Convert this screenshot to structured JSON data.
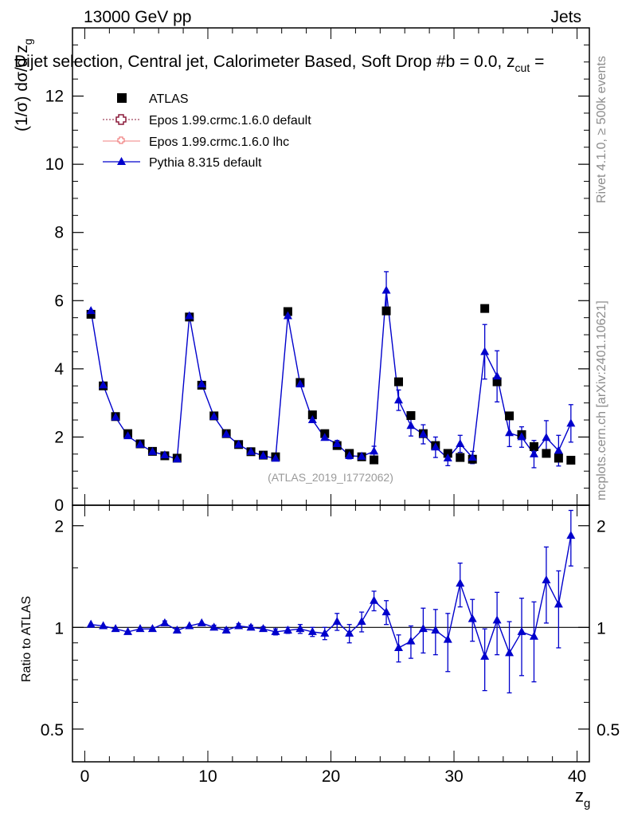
{
  "header": {
    "left": "13000 GeV pp",
    "right": "Jets"
  },
  "side_labels": {
    "rivet": "Rivet 4.1.0, ≥ 500k events",
    "mcplots": "mcplots.cern.ch [arXiv:2401.10621]"
  },
  "chart_data": [
    {
      "panel": "main",
      "type": "scatter",
      "title": "Dijet selection, Central jet, Calorimeter Based, Soft Drop #b = 0.0, z",
      "title_sub": "cut",
      "title_tail": " =",
      "ylabel": "(1/σ) dσ/d z",
      "ylabel_sub": "g",
      "xlabel": "",
      "xlim": [
        -1,
        41
      ],
      "ylim": [
        0,
        14
      ],
      "yticks": [
        0,
        2,
        4,
        6,
        8,
        10,
        12
      ],
      "ytick_labels": [
        "0",
        "2",
        "4",
        "6",
        "8",
        "10",
        "12"
      ],
      "watermark": "(ATLAS_2019_I1772062)",
      "legend": {
        "placement": "top-left",
        "entries": [
          {
            "label": "ATLAS",
            "color": "#000000",
            "marker": "square"
          },
          {
            "label": "Epos 1.99.crmc.1.6.0 default",
            "color": "#8b1a3a",
            "marker": "open-cross",
            "dash": "dotted"
          },
          {
            "label": "Epos 1.99.crmc.1.6.0 lhc",
            "color": "#f08080",
            "marker": "open-cross-small"
          },
          {
            "label": "Pythia 8.315 default",
            "color": "#0000cc",
            "marker": "triangle"
          }
        ]
      },
      "x": [
        0.5,
        1.5,
        2.5,
        3.5,
        4.5,
        5.5,
        6.5,
        7.5,
        8.5,
        9.5,
        10.5,
        11.5,
        12.5,
        13.5,
        14.5,
        15.5,
        16.5,
        17.5,
        18.5,
        19.5,
        20.5,
        21.5,
        22.5,
        23.5,
        24.5,
        25.5,
        26.5,
        27.5,
        28.5,
        29.5,
        30.5,
        31.5,
        32.5,
        33.5,
        34.5,
        35.5,
        36.5,
        37.5,
        38.5,
        39.5
      ],
      "series": [
        {
          "name": "ATLAS",
          "values": [
            5.6,
            3.5,
            2.6,
            2.1,
            1.8,
            1.58,
            1.45,
            1.38,
            5.52,
            3.52,
            2.62,
            2.1,
            1.78,
            1.57,
            1.47,
            1.42,
            5.68,
            3.6,
            2.65,
            2.1,
            1.75,
            1.52,
            1.42,
            1.33,
            5.7,
            3.62,
            2.63,
            2.1,
            1.75,
            1.52,
            1.4,
            1.35,
            5.77,
            3.62,
            2.62,
            2.07,
            1.72,
            1.52,
            1.38,
            1.32
          ]
        },
        {
          "name": "Pythia 8.315 default",
          "values": [
            5.7,
            3.52,
            2.58,
            2.03,
            1.78,
            1.57,
            1.47,
            1.35,
            5.55,
            3.55,
            2.6,
            2.08,
            1.78,
            1.57,
            1.45,
            1.37,
            5.55,
            3.55,
            2.5,
            1.98,
            1.8,
            1.45,
            1.43,
            1.58,
            6.3,
            3.08,
            2.33,
            2.08,
            1.7,
            1.38,
            1.8,
            1.4,
            4.5,
            3.78,
            2.12,
            2.0,
            1.5,
            1.98,
            1.6,
            2.4
          ],
          "errors": [
            0.04,
            0.03,
            0.03,
            0.03,
            0.03,
            0.03,
            0.03,
            0.03,
            0.04,
            0.03,
            0.03,
            0.03,
            0.03,
            0.03,
            0.03,
            0.03,
            0.04,
            0.05,
            0.06,
            0.07,
            0.1,
            0.09,
            0.1,
            0.15,
            0.55,
            0.3,
            0.3,
            0.28,
            0.3,
            0.22,
            0.25,
            0.18,
            0.8,
            0.75,
            0.4,
            0.3,
            0.4,
            0.5,
            0.45,
            0.55
          ]
        }
      ]
    },
    {
      "panel": "ratio",
      "type": "line",
      "ylabel": "Ratio to ATLAS",
      "xlabel": "z",
      "xlabel_sub": "g",
      "xlim": [
        -1,
        41
      ],
      "ylim": [
        0.4,
        2.3
      ],
      "yscale": "log",
      "yticks": [
        0.5,
        1,
        2
      ],
      "ytick_labels": [
        "0.5",
        "1",
        "2"
      ],
      "xticks": [
        0,
        10,
        20,
        30,
        40
      ],
      "xtick_labels": [
        "0",
        "10",
        "20",
        "30",
        "40"
      ],
      "x": [
        0.5,
        1.5,
        2.5,
        3.5,
        4.5,
        5.5,
        6.5,
        7.5,
        8.5,
        9.5,
        10.5,
        11.5,
        12.5,
        13.5,
        14.5,
        15.5,
        16.5,
        17.5,
        18.5,
        19.5,
        20.5,
        21.5,
        22.5,
        23.5,
        24.5,
        25.5,
        26.5,
        27.5,
        28.5,
        29.5,
        30.5,
        31.5,
        32.5,
        33.5,
        34.5,
        35.5,
        36.5,
        37.5,
        38.5,
        39.5
      ],
      "series": [
        {
          "name": "Pythia 8.315 default",
          "values": [
            1.02,
            1.01,
            0.99,
            0.97,
            0.99,
            0.99,
            1.03,
            0.98,
            1.01,
            1.03,
            1.0,
            0.98,
            1.01,
            1.0,
            0.99,
            0.97,
            0.98,
            0.99,
            0.97,
            0.96,
            1.04,
            0.96,
            1.04,
            1.2,
            1.11,
            0.87,
            0.91,
            0.99,
            0.98,
            0.92,
            1.35,
            1.06,
            0.82,
            1.05,
            0.84,
            0.97,
            0.94,
            1.38,
            1.17,
            1.87
          ],
          "errors": [
            0.01,
            0.01,
            0.01,
            0.01,
            0.01,
            0.01,
            0.015,
            0.015,
            0.01,
            0.01,
            0.015,
            0.015,
            0.015,
            0.015,
            0.015,
            0.02,
            0.02,
            0.03,
            0.03,
            0.04,
            0.06,
            0.06,
            0.07,
            0.08,
            0.09,
            0.08,
            0.1,
            0.15,
            0.15,
            0.18,
            0.2,
            0.15,
            0.17,
            0.22,
            0.2,
            0.25,
            0.25,
            0.35,
            0.3,
            0.35
          ]
        }
      ]
    }
  ]
}
